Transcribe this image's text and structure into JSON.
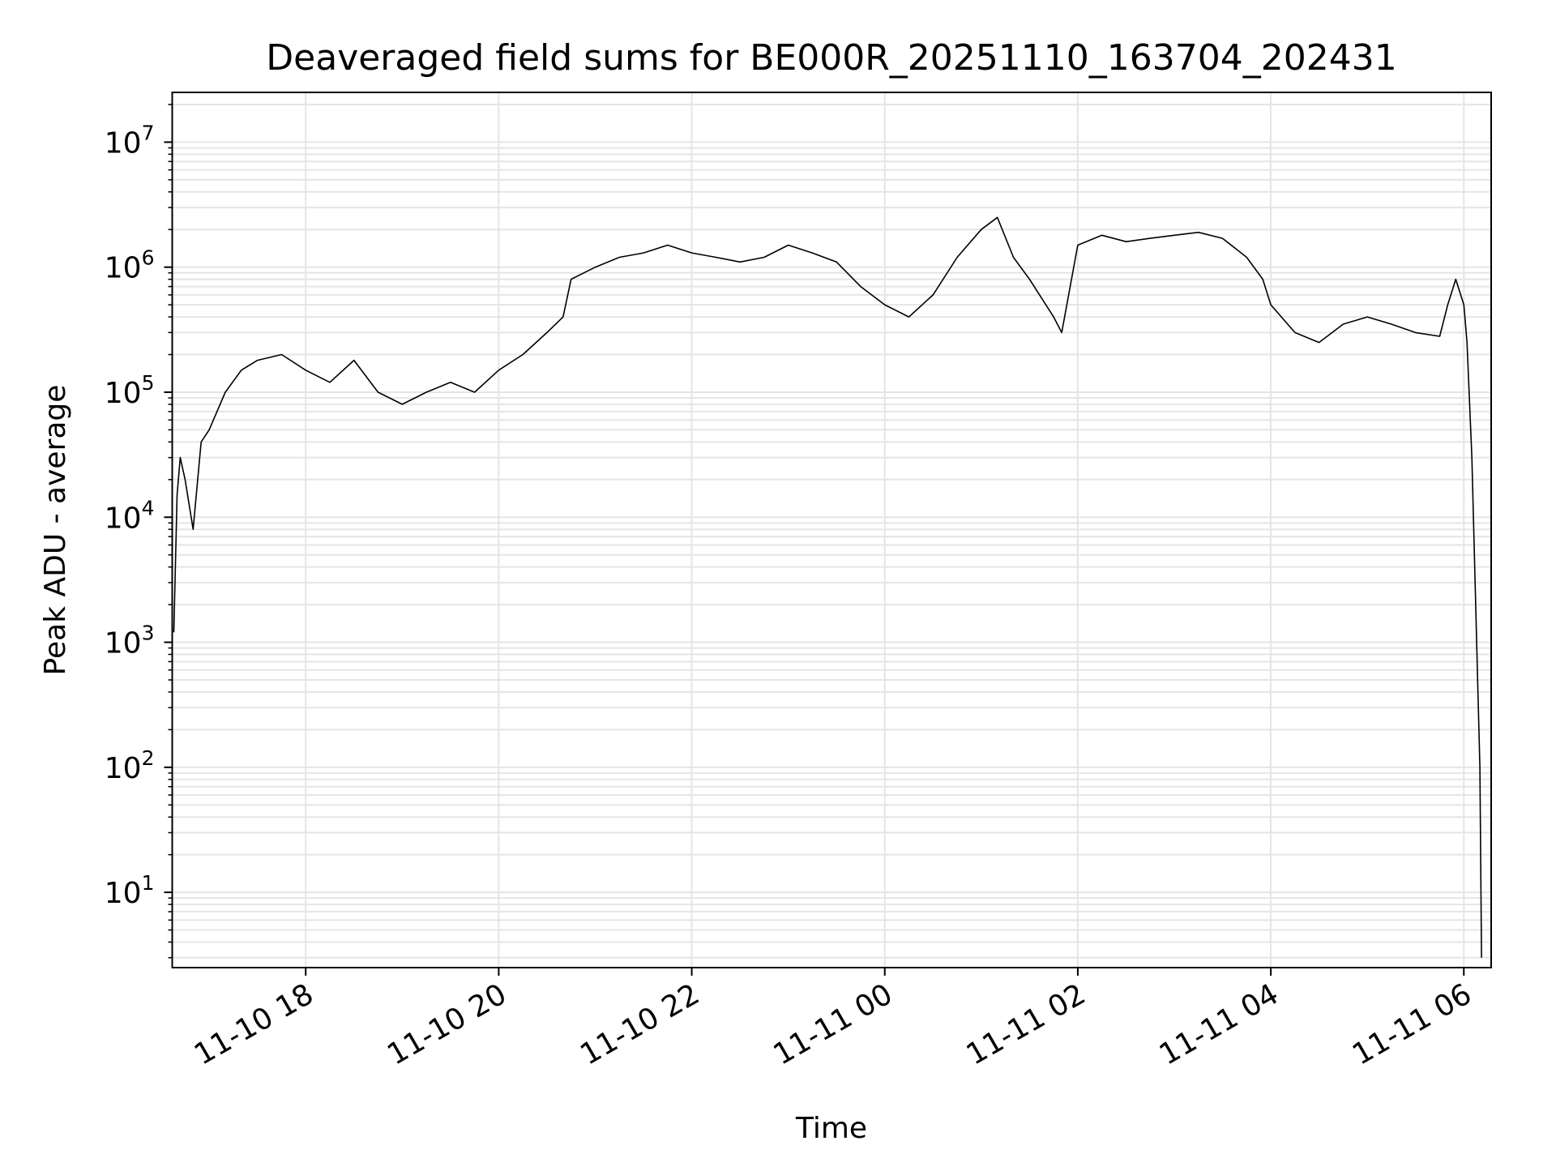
{
  "chart_data": {
    "type": "line",
    "title": "Deaveraged field sums for BE000R_20251110_163704_202431",
    "xlabel": "Time",
    "ylabel": "Peak ADU - average",
    "yscale": "log",
    "ylim": [
      2.5,
      25000000
    ],
    "xlim": [
      "2025-11-10 16:37",
      "2025-11-11 06:17"
    ],
    "grid": true,
    "line_color": "#000000",
    "grid_color": "#e5e5e5",
    "x_ticks": [
      {
        "value": "2025-11-10 18:00",
        "label": "11-10 18"
      },
      {
        "value": "2025-11-10 20:00",
        "label": "11-10 20"
      },
      {
        "value": "2025-11-10 22:00",
        "label": "11-10 22"
      },
      {
        "value": "2025-11-11 00:00",
        "label": "11-11 00"
      },
      {
        "value": "2025-11-11 02:00",
        "label": "11-11 02"
      },
      {
        "value": "2025-11-11 04:00",
        "label": "11-11 04"
      },
      {
        "value": "2025-11-11 06:00",
        "label": "11-11 06"
      }
    ],
    "y_ticks": [
      {
        "value": 10,
        "base": "10",
        "exp": "1"
      },
      {
        "value": 100,
        "base": "10",
        "exp": "2"
      },
      {
        "value": 1000,
        "base": "10",
        "exp": "3"
      },
      {
        "value": 10000,
        "base": "10",
        "exp": "4"
      },
      {
        "value": 100000,
        "base": "10",
        "exp": "5"
      },
      {
        "value": 1000000,
        "base": "10",
        "exp": "6"
      },
      {
        "value": 10000000,
        "base": "10",
        "exp": "7"
      }
    ],
    "series": [
      {
        "x": [
          "2025-11-10 16:38",
          "2025-11-10 16:40",
          "2025-11-10 16:42",
          "2025-11-10 16:45",
          "2025-11-10 16:50",
          "2025-11-10 16:55",
          "2025-11-10 17:00",
          "2025-11-10 17:10",
          "2025-11-10 17:20",
          "2025-11-10 17:30",
          "2025-11-10 17:45",
          "2025-11-10 18:00",
          "2025-11-10 18:15",
          "2025-11-10 18:30",
          "2025-11-10 18:45",
          "2025-11-10 19:00",
          "2025-11-10 19:15",
          "2025-11-10 19:30",
          "2025-11-10 19:45",
          "2025-11-10 20:00",
          "2025-11-10 20:15",
          "2025-11-10 20:30",
          "2025-11-10 20:40",
          "2025-11-10 20:45",
          "2025-11-10 21:00",
          "2025-11-10 21:15",
          "2025-11-10 21:30",
          "2025-11-10 21:45",
          "2025-11-10 22:00",
          "2025-11-10 22:15",
          "2025-11-10 22:30",
          "2025-11-10 22:45",
          "2025-11-10 23:00",
          "2025-11-10 23:15",
          "2025-11-10 23:30",
          "2025-11-10 23:45",
          "2025-11-11 00:00",
          "2025-11-11 00:15",
          "2025-11-11 00:30",
          "2025-11-11 00:45",
          "2025-11-11 01:00",
          "2025-11-11 01:10",
          "2025-11-11 01:20",
          "2025-11-11 01:30",
          "2025-11-11 01:45",
          "2025-11-11 01:50",
          "2025-11-11 02:00",
          "2025-11-11 02:15",
          "2025-11-11 02:30",
          "2025-11-11 02:45",
          "2025-11-11 03:00",
          "2025-11-11 03:15",
          "2025-11-11 03:30",
          "2025-11-11 03:45",
          "2025-11-11 03:55",
          "2025-11-11 04:00",
          "2025-11-11 04:15",
          "2025-11-11 04:30",
          "2025-11-11 04:45",
          "2025-11-11 05:00",
          "2025-11-11 05:15",
          "2025-11-11 05:30",
          "2025-11-11 05:45",
          "2025-11-11 05:50",
          "2025-11-11 05:55",
          "2025-11-11 06:00",
          "2025-11-11 06:02",
          "2025-11-11 06:05",
          "2025-11-11 06:08",
          "2025-11-11 06:10",
          "2025-11-11 06:11"
        ],
        "y": [
          1200,
          15000,
          30000,
          20000,
          8000,
          40000,
          50000,
          100000,
          150000,
          180000,
          200000,
          150000,
          120000,
          180000,
          100000,
          80000,
          100000,
          120000,
          100000,
          150000,
          200000,
          300000,
          400000,
          800000,
          1000000,
          1200000,
          1300000,
          1500000,
          1300000,
          1200000,
          1100000,
          1200000,
          1500000,
          1300000,
          1100000,
          700000,
          500000,
          400000,
          600000,
          1200000,
          2000000,
          2500000,
          1200000,
          800000,
          400000,
          300000,
          1500000,
          1800000,
          1600000,
          1700000,
          1800000,
          1900000,
          1700000,
          1200000,
          800000,
          500000,
          300000,
          250000,
          350000,
          400000,
          350000,
          300000,
          280000,
          500000,
          800000,
          500000,
          250000,
          30000,
          1000,
          100,
          3
        ]
      }
    ]
  }
}
